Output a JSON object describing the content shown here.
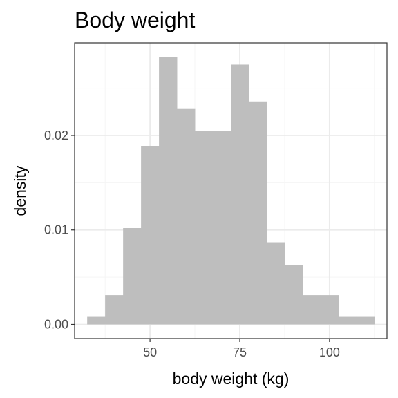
{
  "chart_data": {
    "type": "bar",
    "subtype": "histogram",
    "title": "Body weight",
    "xlabel": "body weight (kg)",
    "ylabel": "density",
    "xlim": [
      29,
      116
    ],
    "ylim": [
      -0.0015,
      0.0298
    ],
    "xticks": [
      50,
      75,
      100
    ],
    "xtick_labels": [
      "50",
      "75",
      "100"
    ],
    "yticks": [
      0.0,
      0.01,
      0.02
    ],
    "ytick_labels": [
      "0.00",
      "0.01",
      "0.02"
    ],
    "grid": true,
    "legend": "none",
    "bin_width": 5,
    "bins": [
      {
        "x0": 32.5,
        "x1": 37.5,
        "density": 0.0008
      },
      {
        "x0": 37.5,
        "x1": 42.5,
        "density": 0.0031
      },
      {
        "x0": 42.5,
        "x1": 47.5,
        "density": 0.0102
      },
      {
        "x0": 47.5,
        "x1": 52.5,
        "density": 0.0189
      },
      {
        "x0": 52.5,
        "x1": 57.5,
        "density": 0.0283
      },
      {
        "x0": 57.5,
        "x1": 62.5,
        "density": 0.0228
      },
      {
        "x0": 62.5,
        "x1": 67.5,
        "density": 0.0205
      },
      {
        "x0": 67.5,
        "x1": 72.5,
        "density": 0.0205
      },
      {
        "x0": 72.5,
        "x1": 77.5,
        "density": 0.0275
      },
      {
        "x0": 77.5,
        "x1": 82.5,
        "density": 0.0236
      },
      {
        "x0": 82.5,
        "x1": 87.5,
        "density": 0.0087
      },
      {
        "x0": 87.5,
        "x1": 92.5,
        "density": 0.0063
      },
      {
        "x0": 92.5,
        "x1": 97.5,
        "density": 0.0031
      },
      {
        "x0": 97.5,
        "x1": 102.5,
        "density": 0.0031
      },
      {
        "x0": 102.5,
        "x1": 107.5,
        "density": 0.0008
      },
      {
        "x0": 107.5,
        "x1": 112.5,
        "density": 0.0008
      }
    ],
    "colors": {
      "bar_fill": "#bebebe",
      "panel_background": "#ffffff",
      "panel_border": "#333333",
      "grid_major": "#ebebeb",
      "grid_minor": "#f5f5f5",
      "tick_label": "#4d4d4d",
      "text": "#000000"
    }
  }
}
